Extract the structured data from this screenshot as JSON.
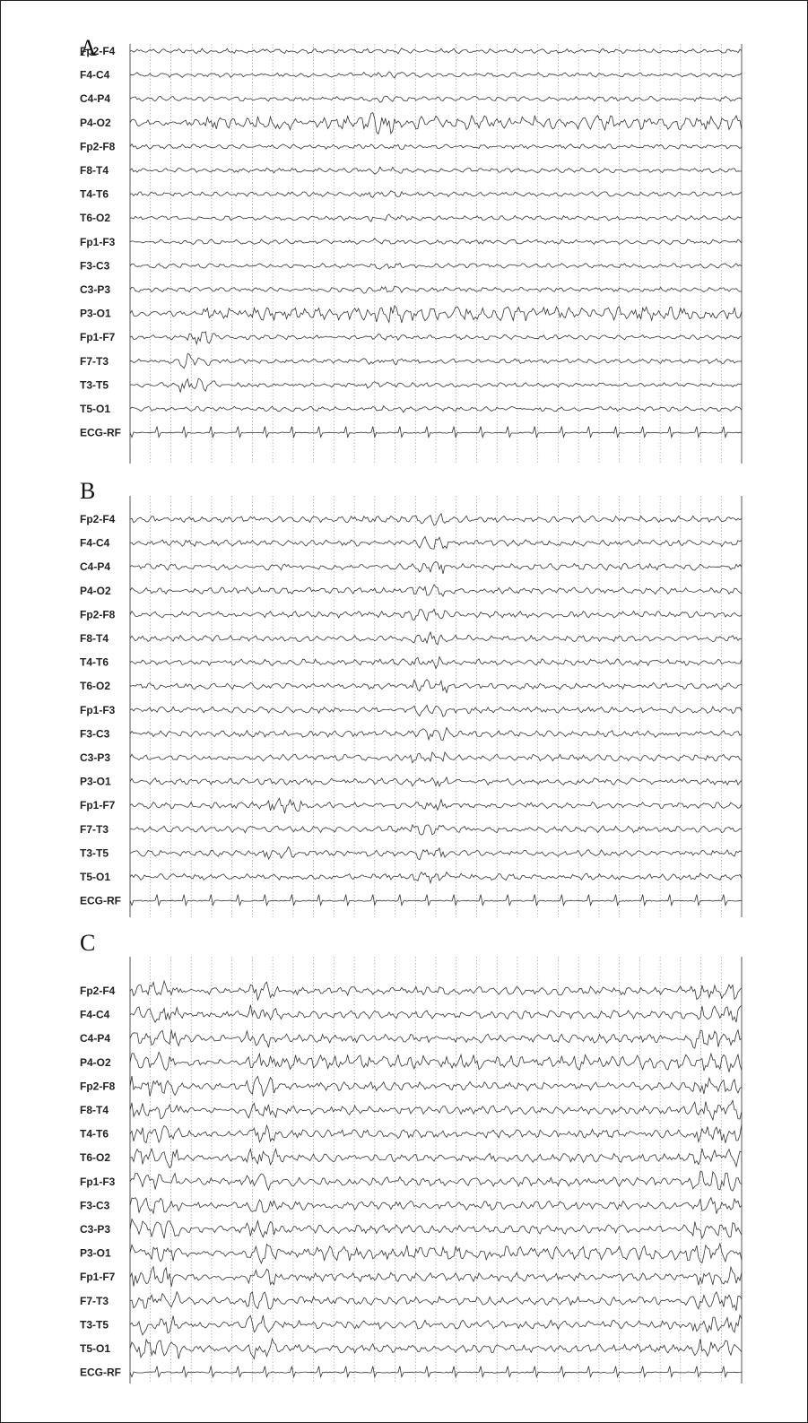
{
  "channels": [
    "Fp2-F4",
    "F4-C4",
    "C4-P4",
    "P4-O2",
    "Fp2-F8",
    "F8-T4",
    "T4-T6",
    "T6-O2",
    "Fp1-F3",
    "F3-C3",
    "C3-P3",
    "P3-O1",
    "Fp1-F7",
    "F7-T3",
    "T3-T5",
    "T5-O1",
    "ECG-RF"
  ],
  "panels": [
    {
      "letter": "A"
    },
    {
      "letter": "B"
    },
    {
      "letter": "C"
    }
  ]
}
